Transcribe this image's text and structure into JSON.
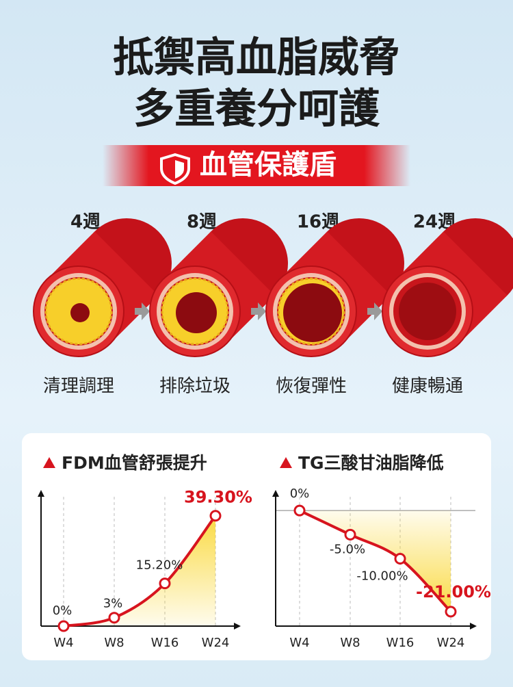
{
  "header": {
    "title_lines": [
      "抵禦高血脂威脅",
      "多重養分呵護"
    ],
    "badge": "血管保護盾"
  },
  "stages": [
    {
      "weeks": "4週",
      "label": "清理調理"
    },
    {
      "weeks": "8週",
      "label": "排除垃圾"
    },
    {
      "weeks": "16週",
      "label": "恢復彈性"
    },
    {
      "weeks": "24週",
      "label": "健康暢通"
    }
  ],
  "chart_data": [
    {
      "type": "line",
      "title": "FDM血管舒張提升",
      "categories": [
        "W4",
        "W8",
        "W16",
        "W24"
      ],
      "values": [
        0,
        3,
        15.2,
        39.3
      ],
      "value_labels": [
        "0%",
        "3%",
        "15.20%",
        "39.30%"
      ],
      "color": "#d7141e",
      "fill_color": "#f9d423",
      "ylim": [
        0,
        48
      ],
      "yticks": [],
      "show_tick_labels": false
    },
    {
      "type": "line",
      "title": "TG三酸甘油脂降低",
      "categories": [
        "W4",
        "W8",
        "W16",
        "W24"
      ],
      "values": [
        0,
        -5,
        -10,
        -21
      ],
      "value_labels": [
        "0%",
        "-5.0%",
        "-10.00%",
        "-21.00%"
      ],
      "color": "#d7141e",
      "fill_color": "#f9d423",
      "ylim": [
        -24,
        4
      ],
      "yticks": [
        0
      ],
      "show_tick_labels": false
    }
  ]
}
